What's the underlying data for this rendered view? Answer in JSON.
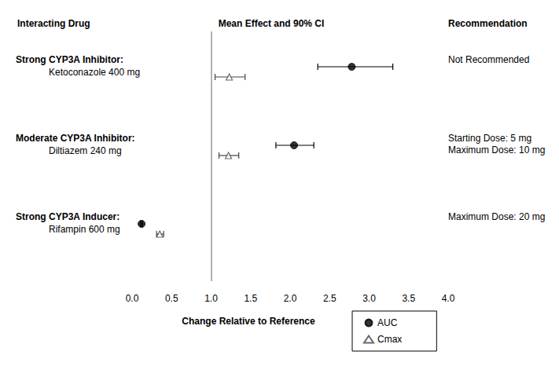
{
  "chart_data": {
    "type": "forest",
    "headers": {
      "left": "Interacting Drug",
      "middle": "Mean Effect and 90% CI",
      "right": "Recommendation"
    },
    "xlabel": "Change Relative to Reference",
    "xlim": [
      0,
      4
    ],
    "xticks": [
      {
        "value": 0,
        "label": "0.0"
      },
      {
        "value": 0.5,
        "label": "0.5"
      },
      {
        "value": 1,
        "label": "1.0"
      },
      {
        "value": 1.5,
        "label": "1.5"
      },
      {
        "value": 2,
        "label": "2.0"
      },
      {
        "value": 2.5,
        "label": "2.5"
      },
      {
        "value": 3,
        "label": "3.0"
      },
      {
        "value": 3.5,
        "label": "3.5"
      },
      {
        "value": 4,
        "label": "4.0"
      }
    ],
    "reference": 1,
    "rows": [
      {
        "group": "Strong CYP3A Inhibitor:",
        "drug": "Ketoconazole 400 mg",
        "recommendation": [
          "Not Recommended"
        ]
      },
      {
        "group": "Moderate CYP3A Inhibitor:",
        "drug": "Diltiazem 240 mg",
        "recommendation": [
          "Starting Dose: 5 mg",
          "Maximum Dose: 10 mg"
        ]
      },
      {
        "group": "Strong CYP3A Inducer:",
        "drug": "Rifampin 600 mg",
        "recommendation": [
          "Maximum Dose: 20 mg"
        ]
      }
    ],
    "series": [
      {
        "name": "AUC",
        "marker": "circle",
        "color": "#000000",
        "values": [
          2.78,
          2.05,
          0.12
        ],
        "ci_low": [
          2.35,
          1.82,
          0.11
        ],
        "ci_high": [
          3.3,
          2.3,
          0.13
        ]
      },
      {
        "name": "Cmax",
        "marker": "triangle-open",
        "color": "#444444",
        "values": [
          1.23,
          1.22,
          0.35
        ],
        "ci_low": [
          1.05,
          1.1,
          0.31
        ],
        "ci_high": [
          1.43,
          1.35,
          0.4
        ]
      }
    ],
    "legend": "bottom"
  }
}
